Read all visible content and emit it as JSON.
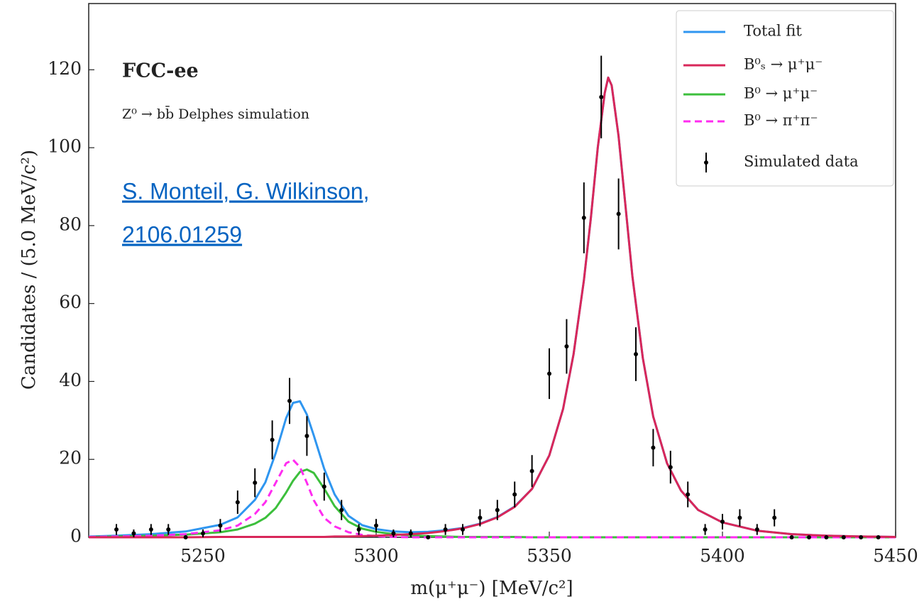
{
  "chart_data": {
    "type": "line",
    "title": "FCC-ee",
    "subtitle": "Z⁰ → bb̄ Delphes simulation",
    "link": [
      "S. Monteil, G. Wilkinson,",
      "2106.01259"
    ],
    "xlabel": "m(μ⁺μ⁻) [MeV/c²]",
    "ylabel": "Candidates / (5.0 MeV/c²)",
    "xlim": [
      5217,
      5450
    ],
    "ylim": [
      0,
      137
    ],
    "xticks": [
      5250,
      5300,
      5350,
      5400,
      5450
    ],
    "yticks": [
      0,
      20,
      40,
      60,
      80,
      100,
      120
    ],
    "legend": "upper right",
    "x": [
      5217,
      5225,
      5235,
      5245,
      5255,
      5260,
      5265,
      5268,
      5271,
      5274,
      5276,
      5278,
      5280,
      5282,
      5285,
      5288,
      5292,
      5296,
      5300,
      5305,
      5310,
      5315,
      5320,
      5325,
      5330,
      5335,
      5340,
      5345,
      5350,
      5354,
      5357,
      5360,
      5362,
      5364,
      5366,
      5367,
      5368,
      5370,
      5372,
      5374,
      5377,
      5380,
      5384,
      5388,
      5393,
      5400,
      5410,
      5420,
      5430,
      5440,
      5450
    ],
    "series": [
      {
        "name": "Total fit",
        "color": "#2f96f0",
        "dashed": false,
        "values": [
          0.2,
          0.4,
          0.8,
          1.5,
          3.2,
          5.1,
          9.6,
          14.1,
          21.6,
          30.6,
          34.5,
          34.9,
          31.5,
          26.1,
          17.6,
          11,
          5.5,
          3.1,
          2.1,
          1.5,
          1.3,
          1.4,
          1.8,
          2.4,
          3.5,
          5.2,
          7.9,
          12.4,
          21,
          33,
          47,
          66,
          82,
          100,
          114,
          118,
          116,
          103,
          85,
          67,
          46,
          31,
          19,
          12,
          7,
          3.8,
          1.7,
          0.8,
          0.4,
          0.2,
          0.1
        ]
      },
      {
        "name": "B⁰ → μ⁺μ⁻",
        "color": "#3cbf3c",
        "dashed": false,
        "values": [
          0.1,
          0.2,
          0.4,
          0.7,
          1.3,
          2,
          3.5,
          5,
          7.5,
          11.5,
          14.5,
          16.8,
          17.4,
          16.5,
          12.5,
          8,
          4,
          2.2,
          1.4,
          0.8,
          0.5,
          0.3,
          0.2,
          0.1,
          0.1,
          0.1,
          0.1,
          0,
          0,
          0,
          0,
          0,
          0,
          0,
          0,
          0,
          0,
          0,
          0,
          0,
          0,
          0,
          0,
          0,
          0,
          0,
          0,
          0,
          0,
          0,
          0
        ]
      },
      {
        "name": "B⁰ → π⁺π⁻",
        "color": "#ff2cf0",
        "dashed": true,
        "values": [
          0.1,
          0.2,
          0.4,
          0.8,
          1.8,
          3,
          6,
          9,
          14,
          19,
          19.9,
          18,
          14,
          9.5,
          5,
          2.8,
          1.3,
          0.6,
          0.3,
          0.1,
          0,
          0,
          0,
          0,
          0,
          0,
          0,
          0,
          0,
          0,
          0,
          0,
          0,
          0,
          0,
          0,
          0,
          0,
          0,
          0,
          0,
          0,
          0,
          0,
          0,
          0,
          0,
          0,
          0,
          0,
          0
        ]
      },
      {
        "name": "B⁰ₛ → μ⁺μ⁻",
        "color": "#d8275a",
        "dashed": false,
        "values": [
          0,
          0,
          0,
          0,
          0.1,
          0.1,
          0.1,
          0.1,
          0.1,
          0.1,
          0.1,
          0.1,
          0.1,
          0.1,
          0.1,
          0.2,
          0.2,
          0.3,
          0.4,
          0.6,
          0.8,
          1.1,
          1.6,
          2.3,
          3.4,
          5.1,
          7.8,
          12.4,
          21,
          33,
          47,
          66,
          82,
          100,
          114,
          118,
          116,
          103,
          85,
          67,
          46,
          31,
          19,
          12,
          7,
          3.8,
          1.7,
          0.8,
          0.4,
          0.2,
          0.1
        ]
      }
    ],
    "data": {
      "name": "Simulated data",
      "color": "#000000",
      "x": [
        5225,
        5230,
        5235,
        5240,
        5245,
        5250,
        5255,
        5260,
        5265,
        5270,
        5275,
        5280,
        5285,
        5290,
        5295,
        5300,
        5305,
        5310,
        5315,
        5320,
        5325,
        5330,
        5335,
        5340,
        5345,
        5350,
        5355,
        5360,
        5365,
        5370,
        5375,
        5380,
        5385,
        5390,
        5395,
        5400,
        5405,
        5410,
        5415,
        5420,
        5425,
        5430,
        5435,
        5440,
        5445
      ],
      "values": [
        2,
        1,
        2,
        2,
        0,
        1,
        3,
        9,
        14,
        25,
        35,
        26,
        13,
        7,
        2,
        3,
        1,
        1,
        0,
        2,
        2,
        5,
        7,
        11,
        17,
        42,
        49,
        82,
        113,
        83,
        47,
        23,
        18,
        11,
        2,
        4,
        5,
        2,
        5,
        0,
        0,
        0,
        0,
        0,
        0
      ],
      "errors": [
        1.4,
        1,
        1.4,
        1.4,
        0,
        1,
        1.7,
        3,
        3.7,
        5,
        5.9,
        5.1,
        3.6,
        2.6,
        1.4,
        1.7,
        1,
        1,
        0,
        1.4,
        1.4,
        2.2,
        2.6,
        3.3,
        4.1,
        6.5,
        7,
        9.1,
        10.6,
        9.1,
        6.9,
        4.8,
        4.2,
        3.3,
        1.4,
        2,
        2.2,
        1.4,
        2.2,
        0,
        0,
        0,
        0,
        0,
        0
      ]
    }
  }
}
